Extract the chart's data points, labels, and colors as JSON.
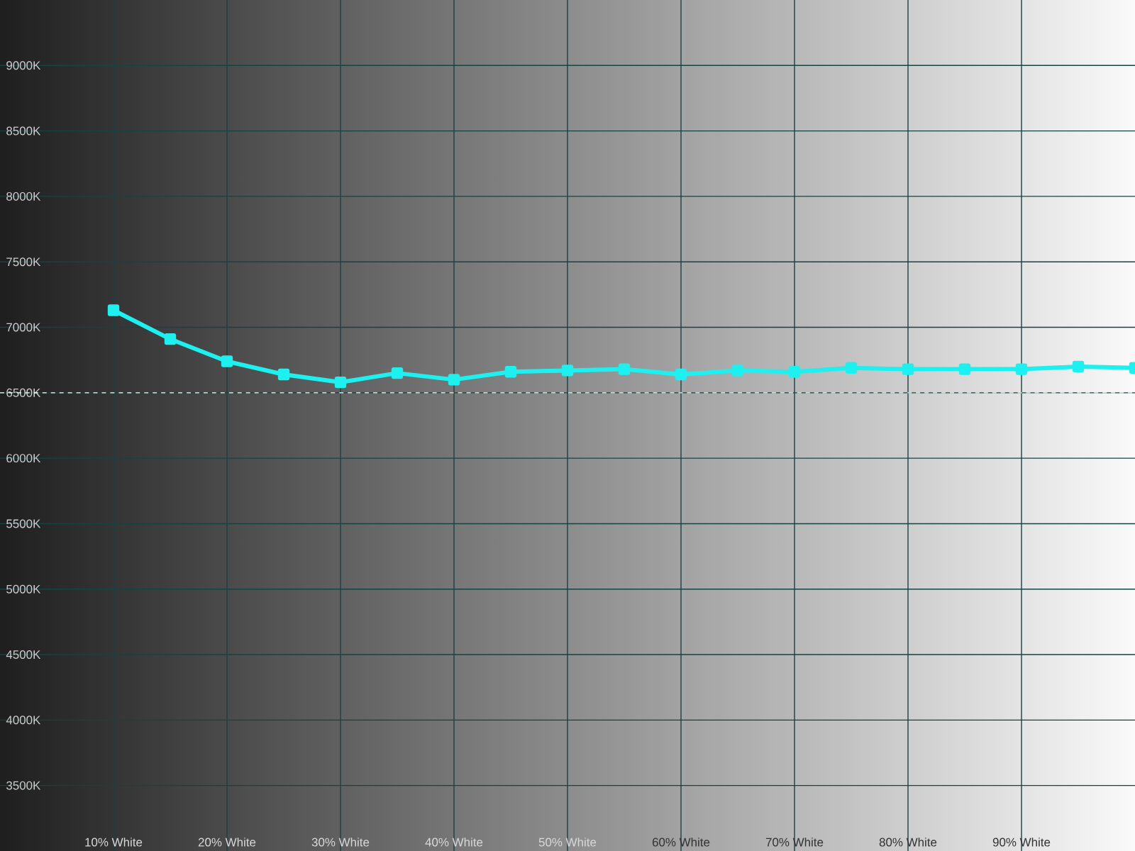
{
  "chart_data": {
    "type": "line",
    "x": [
      10,
      15,
      20,
      25,
      30,
      35,
      40,
      45,
      50,
      55,
      60,
      65,
      70,
      75,
      80,
      85,
      90,
      95,
      100
    ],
    "series": [
      {
        "color": "#1ef0f0",
        "values": [
          7130,
          6910,
          6740,
          6640,
          6580,
          6650,
          6600,
          6660,
          6670,
          6680,
          6640,
          6670,
          6660,
          6690,
          6680,
          6680,
          6680,
          6700,
          6690
        ]
      }
    ],
    "xlim": [
      0,
      100
    ],
    "xticks": [
      {
        "value": 10,
        "label": "10% White"
      },
      {
        "value": 20,
        "label": "20% White"
      },
      {
        "value": 30,
        "label": "30% White"
      },
      {
        "value": 40,
        "label": "40% White"
      },
      {
        "value": 50,
        "label": "50% White"
      },
      {
        "value": 60,
        "label": "60% White"
      },
      {
        "value": 70,
        "label": "70% White"
      },
      {
        "value": 80,
        "label": "80% White"
      },
      {
        "value": 90,
        "label": "90% White"
      }
    ],
    "ylim": [
      3000,
      9500
    ],
    "yticks": [
      {
        "value": 3500,
        "label": "3500K"
      },
      {
        "value": 4000,
        "label": "4000K"
      },
      {
        "value": 4500,
        "label": "4500K"
      },
      {
        "value": 5000,
        "label": "5000K"
      },
      {
        "value": 5500,
        "label": "5500K"
      },
      {
        "value": 6000,
        "label": "6000K"
      },
      {
        "value": 6500,
        "label": "6500K"
      },
      {
        "value": 7000,
        "label": "7000K"
      },
      {
        "value": 7500,
        "label": "7500K"
      },
      {
        "value": 8000,
        "label": "8000K"
      },
      {
        "value": 8500,
        "label": "8500K"
      },
      {
        "value": 9000,
        "label": "9000K"
      }
    ],
    "ref_lines": [
      {
        "axis": "y",
        "value": 6500,
        "color": "#ffffff",
        "line_style": "dashed"
      }
    ],
    "grid": true,
    "marker": "square",
    "line_style": "solid"
  }
}
